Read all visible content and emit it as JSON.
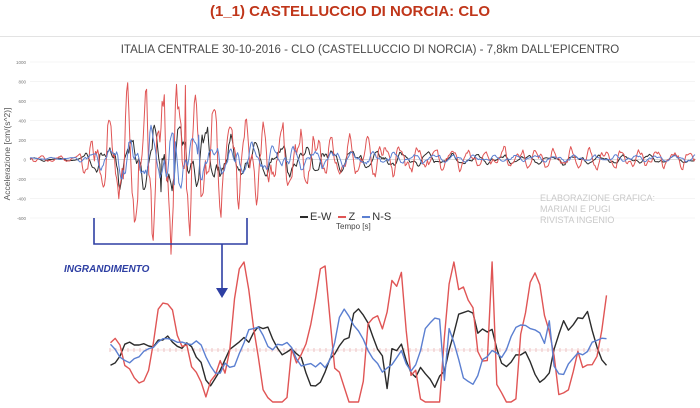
{
  "page": {
    "title": "(1_1) CASTELLUCCIO DI NORCIA: CLO",
    "title_color": "#c0361a",
    "zoom_label": "INGRANDIMENTO",
    "zoom_color": "#2e3fa3",
    "credits": [
      "ELABORAZIONE GRAFICA:",
      "MARIANI E PUGI",
      "RIVISTA INGENIO"
    ]
  },
  "chart_data": [
    {
      "type": "line",
      "title": "ITALIA CENTRALE 30-10-2016  - CLO (CASTELLUCCIO DI NORCIA) - 7,8km DALL'EPICENTRO",
      "xlabel": "Tempo [s]",
      "ylabel": "Accelerazione [cm/(s^2)]",
      "ylim": [
        -600,
        1000
      ],
      "yticks": [
        1000,
        800,
        600,
        400,
        200,
        0,
        -200,
        -400,
        -600
      ],
      "ytick_labels": [
        "1000",
        "800",
        "600",
        "400",
        "200",
        "0",
        "-200",
        "-400",
        "-600"
      ],
      "xlim": [
        0,
        60
      ],
      "legend": [
        "E-W",
        "Z",
        "N-S"
      ],
      "series": [
        {
          "name": "E-W",
          "color": "#2b2b2b",
          "peak": 330,
          "values": []
        },
        {
          "name": "Z",
          "color": "#e05555",
          "peak": 760,
          "values": []
        },
        {
          "name": "N-S",
          "color": "#5b7fd1",
          "peak": 250,
          "values": []
        }
      ]
    },
    {
      "type": "line",
      "title": "INGRANDIMENTO",
      "xlim": [
        6.0,
        16.5
      ],
      "series": [
        "E-W",
        "Z",
        "N-S"
      ]
    }
  ]
}
